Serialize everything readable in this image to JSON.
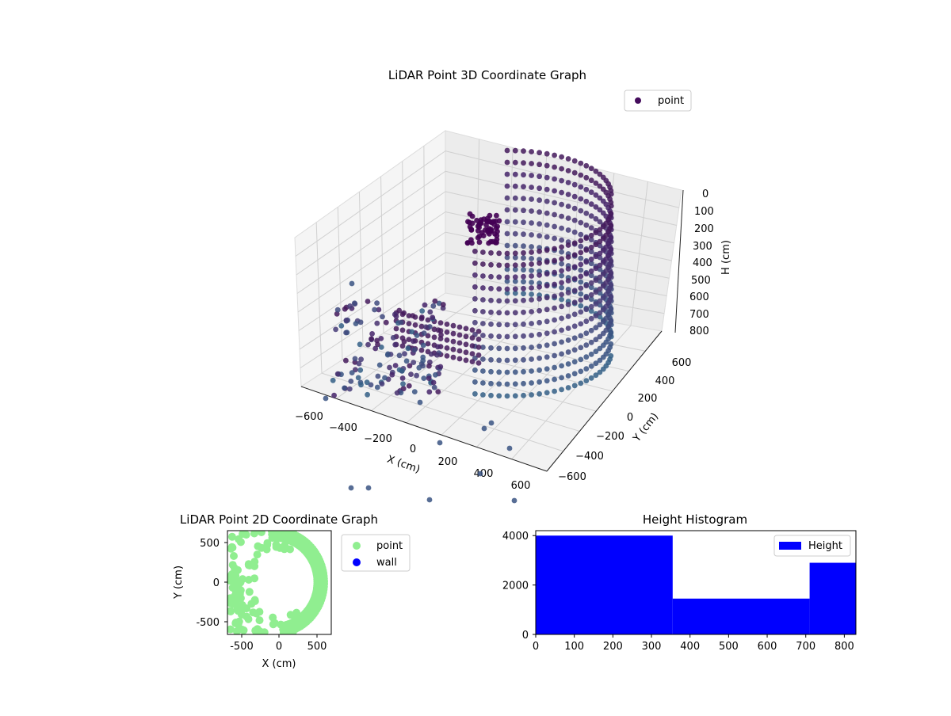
{
  "chart_data": [
    {
      "type": "scatter3d",
      "title": "LiDAR Point 3D Coordinate Graph",
      "xlabel": "X (cm)",
      "ylabel": "Y (cm)",
      "zlabel": "H (cm)",
      "x_ticks": [
        "−600",
        "−400",
        "−200",
        "0",
        "200",
        "400",
        "600"
      ],
      "y_ticks": [
        "−600",
        "−400",
        "−200",
        "0",
        "200",
        "400",
        "600"
      ],
      "z_ticks": [
        "0",
        "100",
        "200",
        "300",
        "400",
        "500",
        "600",
        "700",
        "800"
      ],
      "xlim": [
        -700,
        700
      ],
      "ylim": [
        -700,
        700
      ],
      "zlim": [
        0,
        850
      ],
      "z_inverted": true,
      "legend": [
        "point"
      ],
      "legend_position": "top-right",
      "colormap": "viridis",
      "grid": true
    },
    {
      "type": "scatter",
      "title": "LiDAR Point 2D Coordinate Graph",
      "xlabel": "X (cm)",
      "ylabel": "Y (cm)",
      "x_ticks": [
        -500,
        0,
        500
      ],
      "y_ticks": [
        -500,
        0,
        500
      ],
      "xlim": [
        -690,
        690
      ],
      "ylim": [
        -700,
        700
      ],
      "series": [
        {
          "name": "point",
          "color": "#90ee90"
        },
        {
          "name": "wall",
          "color": "#0000ff"
        }
      ],
      "legend_position": "outside-right"
    },
    {
      "type": "bar",
      "title": "Height Histogram",
      "bins": [
        [
          0,
          355
        ],
        [
          355,
          710
        ],
        [
          710,
          830
        ]
      ],
      "values": [
        4000,
        1450,
        2900
      ],
      "x_ticks": [
        0,
        100,
        200,
        300,
        400,
        500,
        600,
        700,
        800
      ],
      "y_ticks": [
        0,
        2000,
        4000
      ],
      "xlim": [
        0,
        830
      ],
      "ylim": [
        0,
        4200
      ],
      "color": "#0000ff",
      "legend": [
        "Height"
      ],
      "legend_position": "top-right"
    }
  ]
}
